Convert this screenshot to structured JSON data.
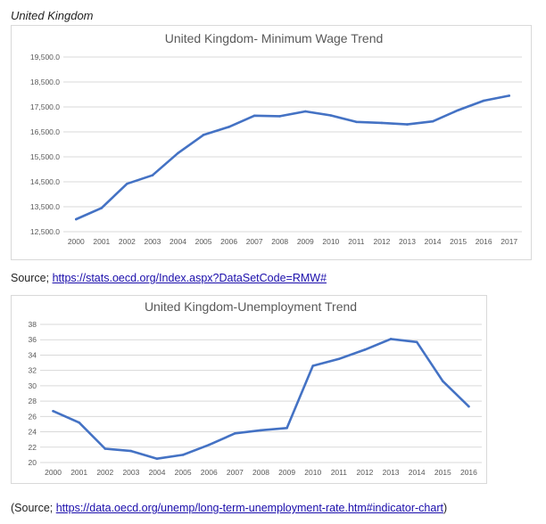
{
  "heading": "United Kingdom",
  "sources": [
    {
      "prefix": "Source; ",
      "link_text": "https://stats.oecd.org/Index.aspx?DataSetCode=RMW#",
      "suffix": ""
    },
    {
      "prefix": "(Source; ",
      "link_text": "https://data.oecd.org/unemp/long-term-unemployment-rate.htm#indicator-chart",
      "suffix": ")"
    }
  ],
  "colors": {
    "line": "#4472c4",
    "grid": "#d9d9d9",
    "title": "#595959",
    "tick": "#595959"
  },
  "chart_data": [
    {
      "type": "line",
      "title": "United Kingdom- Minimum Wage Trend",
      "xlabel": "",
      "ylabel": "",
      "categories": [
        "2000",
        "2001",
        "2002",
        "2003",
        "2004",
        "2005",
        "2006",
        "2007",
        "2008",
        "2009",
        "2010",
        "2011",
        "2012",
        "2013",
        "2014",
        "2015",
        "2016",
        "2017"
      ],
      "values": [
        13000,
        13450,
        14420,
        14760,
        15650,
        16380,
        16700,
        17150,
        17130,
        17320,
        17160,
        16900,
        16860,
        16800,
        16920,
        17370,
        17750,
        17950
      ],
      "ylim": [
        12500,
        19500
      ],
      "yticks": [
        "12,500.0",
        "13,500.0",
        "14,500.0",
        "15,500.0",
        "16,500.0",
        "17,500.0",
        "18,500.0",
        "19,500.0"
      ],
      "grid": true,
      "legend": "none"
    },
    {
      "type": "line",
      "title": "United Kingdom-Unemployment Trend",
      "xlabel": "",
      "ylabel": "",
      "categories": [
        "2000",
        "2001",
        "2002",
        "2003",
        "2004",
        "2005",
        "2006",
        "2007",
        "2008",
        "2009",
        "2010",
        "2011",
        "2012",
        "2013",
        "2014",
        "2015",
        "2016"
      ],
      "values": [
        26.7,
        25.2,
        21.8,
        21.5,
        20.5,
        21.0,
        22.3,
        23.8,
        24.2,
        24.5,
        32.6,
        33.5,
        34.7,
        36.1,
        35.7,
        30.6,
        27.3
      ],
      "ylim": [
        20,
        38
      ],
      "yticks": [
        "20",
        "22",
        "24",
        "26",
        "28",
        "30",
        "32",
        "34",
        "36",
        "38"
      ],
      "grid": true,
      "legend": "none"
    }
  ]
}
